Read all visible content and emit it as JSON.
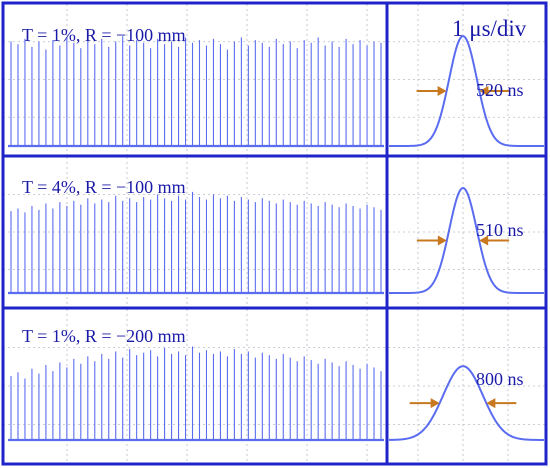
{
  "colors": {
    "frame": "#1f24c8",
    "trace": "#5a6cf0",
    "grid": "#b9bec8",
    "arrow": "#c8781e",
    "text": "#1a1aa8"
  },
  "timebase_label": "1 μs/div",
  "chart_data": [
    {
      "type": "line",
      "panel": "train",
      "label": "T = 1%, R = −100 mm",
      "pulse_count": 54,
      "peak_heights": [
        0.78,
        0.76,
        0.8,
        0.74,
        0.78,
        0.72,
        0.79,
        0.75,
        0.81,
        0.77,
        0.73,
        0.79,
        0.76,
        0.8,
        0.74,
        0.78,
        0.82,
        0.75,
        0.79,
        0.77,
        0.73,
        0.8,
        0.76,
        0.78,
        0.74,
        0.81,
        0.77,
        0.79,
        0.75,
        0.8,
        0.76,
        0.72,
        0.78,
        0.81,
        0.75,
        0.79,
        0.77,
        0.74,
        0.8,
        0.76,
        0.78,
        0.73,
        0.79,
        0.77,
        0.81,
        0.75,
        0.78,
        0.74,
        0.8,
        0.76,
        0.79,
        0.75,
        0.78,
        0.77
      ],
      "grid": true
    },
    {
      "type": "line",
      "panel": "pulse",
      "pulse_width_label": "520 ns",
      "fwhm_ns": 520,
      "peak_height": 0.82,
      "grid": true
    },
    {
      "type": "line",
      "panel": "train",
      "label": "T = 4%, R = −100 mm",
      "pulse_count": 54,
      "peak_heights": [
        0.64,
        0.66,
        0.63,
        0.68,
        0.65,
        0.7,
        0.66,
        0.71,
        0.68,
        0.72,
        0.69,
        0.74,
        0.7,
        0.73,
        0.71,
        0.76,
        0.72,
        0.74,
        0.71,
        0.75,
        0.73,
        0.77,
        0.74,
        0.72,
        0.76,
        0.73,
        0.79,
        0.75,
        0.73,
        0.77,
        0.74,
        0.76,
        0.72,
        0.75,
        0.73,
        0.71,
        0.74,
        0.72,
        0.7,
        0.73,
        0.71,
        0.69,
        0.72,
        0.7,
        0.68,
        0.71,
        0.69,
        0.67,
        0.7,
        0.68,
        0.66,
        0.69,
        0.67,
        0.65
      ],
      "grid": true
    },
    {
      "type": "line",
      "panel": "pulse",
      "pulse_width_label": "510 ns",
      "fwhm_ns": 510,
      "peak_height": 0.82,
      "grid": true
    },
    {
      "type": "line",
      "panel": "train",
      "label": "T = 1%, R = −200 mm",
      "pulse_count": 54,
      "peak_heights": [
        0.52,
        0.55,
        0.5,
        0.58,
        0.54,
        0.61,
        0.56,
        0.63,
        0.59,
        0.66,
        0.62,
        0.68,
        0.64,
        0.7,
        0.66,
        0.72,
        0.67,
        0.74,
        0.69,
        0.71,
        0.73,
        0.68,
        0.75,
        0.7,
        0.72,
        0.69,
        0.76,
        0.71,
        0.73,
        0.7,
        0.72,
        0.68,
        0.74,
        0.7,
        0.72,
        0.67,
        0.71,
        0.69,
        0.66,
        0.7,
        0.67,
        0.64,
        0.68,
        0.65,
        0.62,
        0.66,
        0.63,
        0.6,
        0.64,
        0.61,
        0.58,
        0.62,
        0.59,
        0.56
      ],
      "grid": true
    },
    {
      "type": "line",
      "panel": "pulse",
      "pulse_width_label": "800 ns",
      "fwhm_ns": 800,
      "peak_height": 0.6,
      "grid": true
    }
  ]
}
